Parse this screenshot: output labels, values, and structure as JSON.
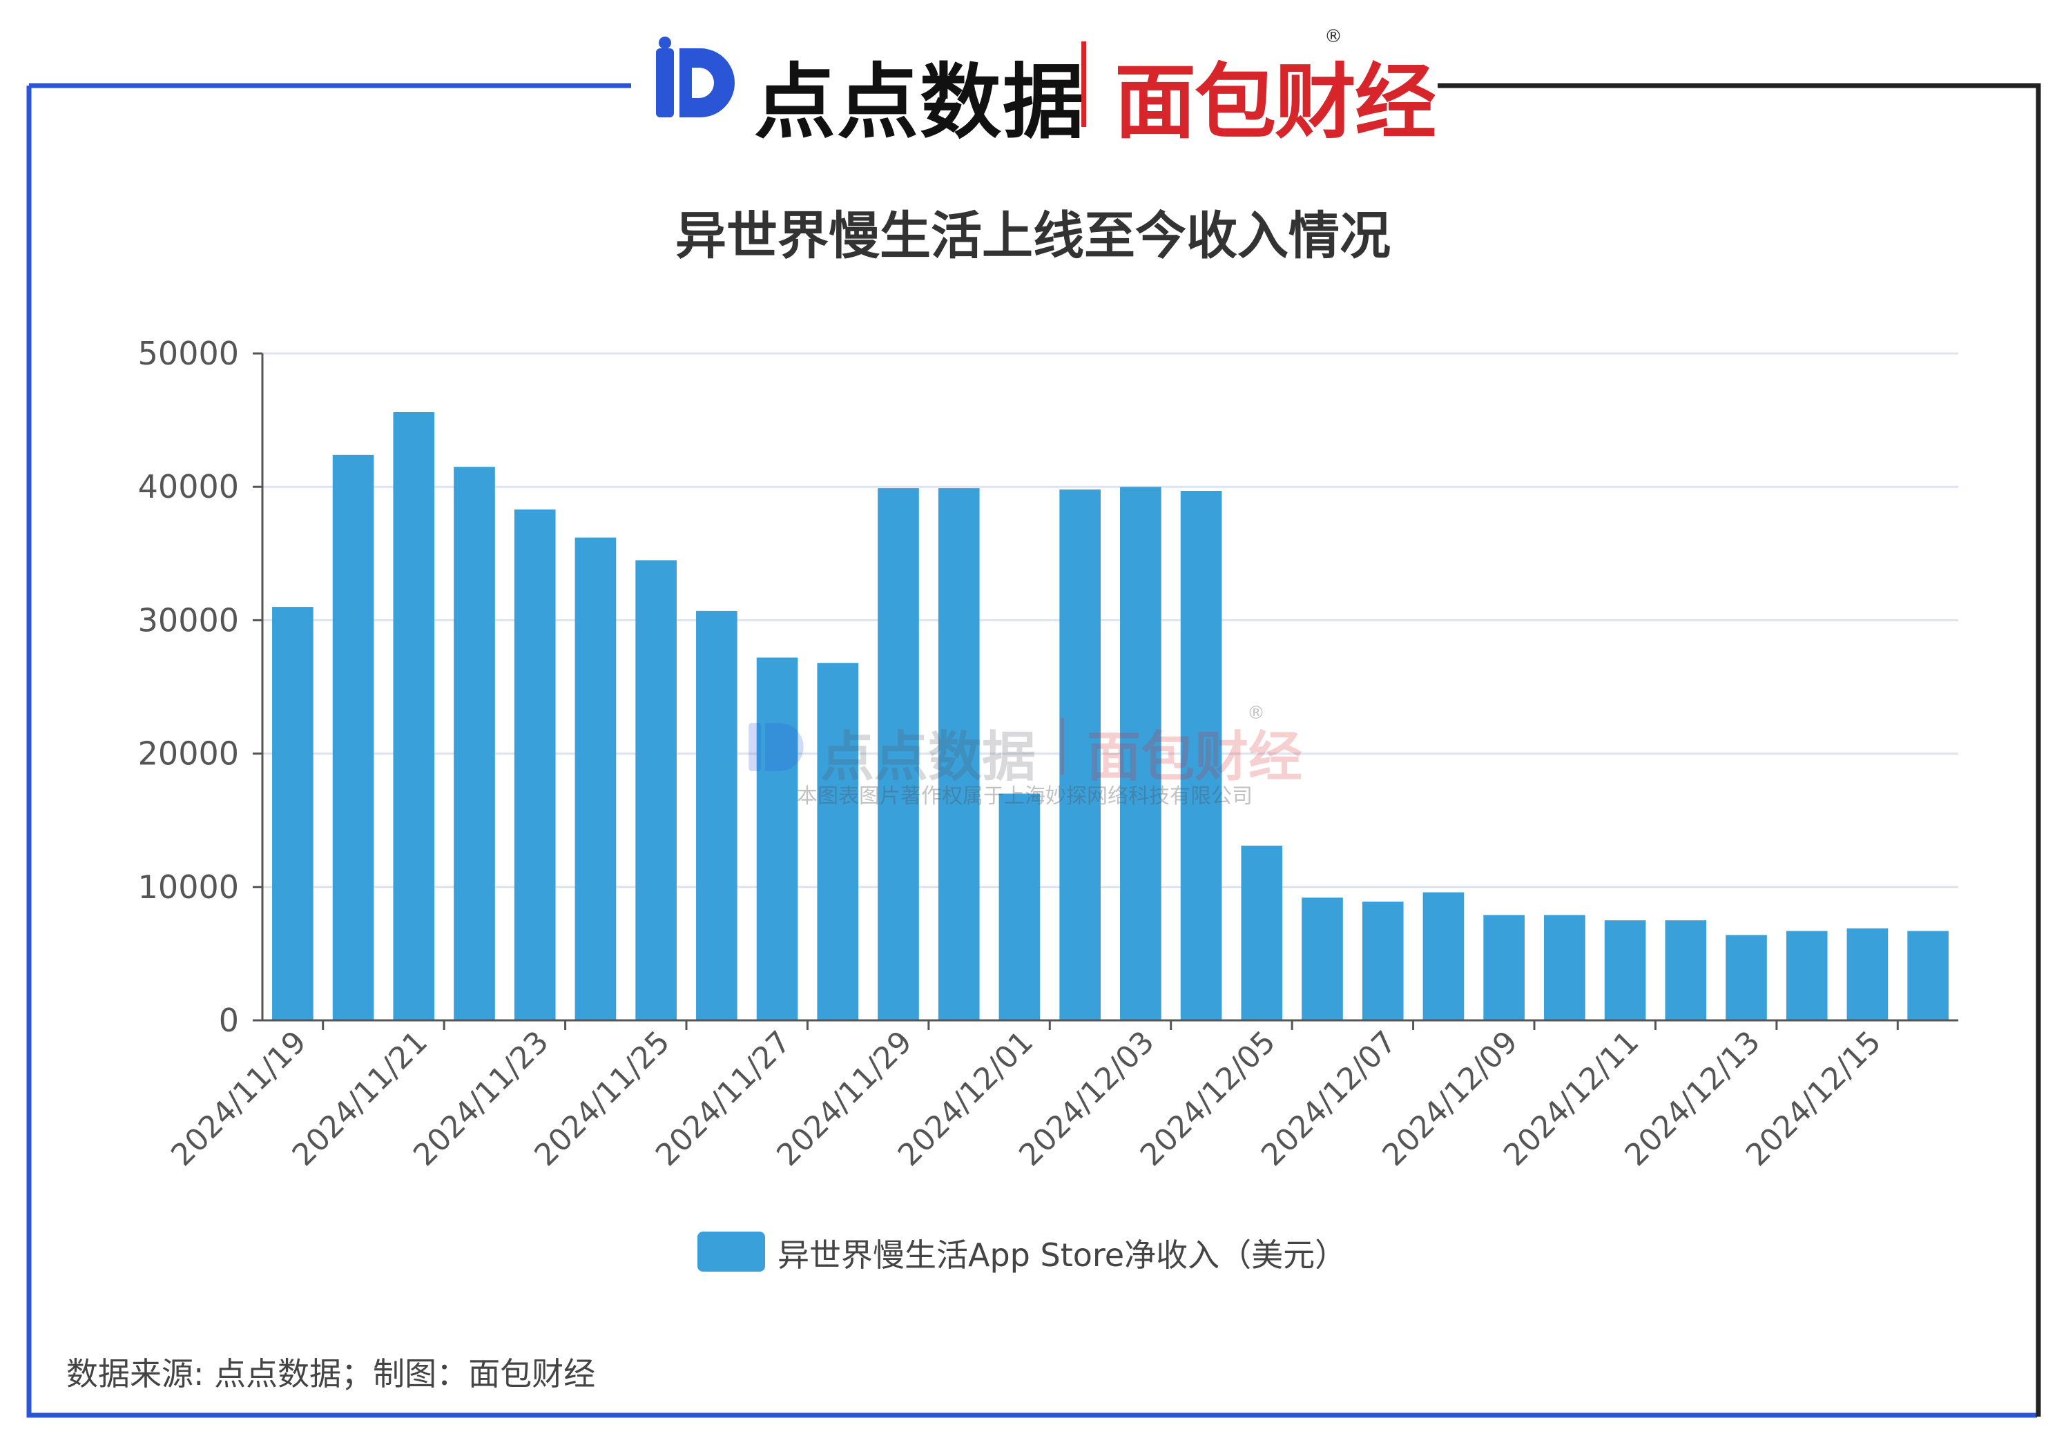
{
  "header": {
    "brand_left": "点点数据",
    "brand_right": "面包财经",
    "registered_mark": "®"
  },
  "watermark": {
    "brand_left": "点点数据",
    "brand_right": "面包财经",
    "registered_mark": "®",
    "copyright": "本图表图片著作权属于上海妙探网络科技有限公司"
  },
  "footer": {
    "source": "数据来源: 点点数据；制图：面包财经"
  },
  "colors": {
    "frame_blue": "#2a55d6",
    "frame_dark": "#222222",
    "bar": "#3aa0da",
    "grid": "#dde4f0",
    "axis": "#555555",
    "brand_blue": "#2a55d6",
    "brand_red": "#d7262b"
  },
  "chart_data": {
    "type": "bar",
    "title": "异世界慢生活上线至今收入情况",
    "xlabel": "",
    "ylabel": "",
    "ylim": [
      0,
      50000
    ],
    "yticks": [
      0,
      10000,
      20000,
      30000,
      40000,
      50000
    ],
    "grid": true,
    "legend_position": "bottom-center",
    "categories": [
      "2024/11/19",
      "2024/11/20",
      "2024/11/21",
      "2024/11/22",
      "2024/11/23",
      "2024/11/24",
      "2024/11/25",
      "2024/11/26",
      "2024/11/27",
      "2024/11/28",
      "2024/11/29",
      "2024/11/30",
      "2024/12/01",
      "2024/12/02",
      "2024/12/03",
      "2024/12/04",
      "2024/12/05",
      "2024/12/06",
      "2024/12/07",
      "2024/12/08",
      "2024/12/09",
      "2024/12/10",
      "2024/12/11",
      "2024/12/12",
      "2024/12/13",
      "2024/12/14",
      "2024/12/15",
      "2024/12/16"
    ],
    "tick_labels": [
      "2024/11/19",
      "2024/11/21",
      "2024/11/23",
      "2024/11/25",
      "2024/11/27",
      "2024/11/29",
      "2024/12/01",
      "2024/12/03",
      "2024/12/05",
      "2024/12/07",
      "2024/12/09",
      "2024/12/11",
      "2024/12/13",
      "2024/12/15"
    ],
    "series": [
      {
        "name": "异世界慢生活App Store净收入（美元）",
        "values": [
          31000,
          42400,
          45600,
          41500,
          38300,
          36200,
          34500,
          30700,
          27200,
          26800,
          39900,
          39900,
          17000,
          39800,
          40000,
          39700,
          13100,
          9200,
          8900,
          9600,
          7900,
          7900,
          7500,
          7500,
          6400,
          6700,
          6900,
          6700
        ]
      }
    ]
  }
}
